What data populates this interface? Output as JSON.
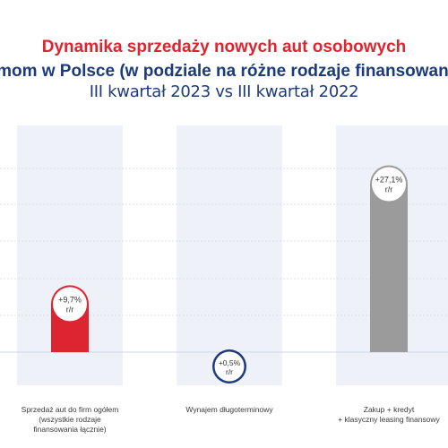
{
  "titles": {
    "line1": "Dynamika sprzedaży nowych aut osobowych",
    "line2": "firmom w Polsce (w podziale na różne rodzaje finansowania)",
    "line3": "III kwartał 2023 vs III kwartał 2022"
  },
  "colors": {
    "red": "#dc2531",
    "navy": "#1c3b7a",
    "gray": "#9b9b9b",
    "band": "#eef1f8",
    "grid": "#cfd6e6"
  },
  "chart_data": {
    "type": "bar",
    "title": "Dynamika sprzedaży nowych aut osobowych firmom w Polsce (w podziale na różne rodzaje finansowania)",
    "subtitle": "III kwartał 2023 vs III kwartał 2022",
    "unit_label": "r/r",
    "categories": [
      "Sprzedaż aut do firm ogółem\n(wszystkie rodzaje\nfinansowania łącznie)",
      "Wynajem długoterminowy",
      "Zakup + kredyt\n+ klasyczny leasing finansowy"
    ],
    "values": [
      9.7,
      0.5,
      27.1
    ],
    "value_labels": [
      "+9,7%",
      "+0,5%",
      "+27,1%"
    ],
    "bar_colors": [
      "#dc2531",
      "#1c3b7a",
      "#9b9b9b"
    ],
    "ylim": [
      0,
      30
    ],
    "grid": true,
    "legend": "none"
  }
}
